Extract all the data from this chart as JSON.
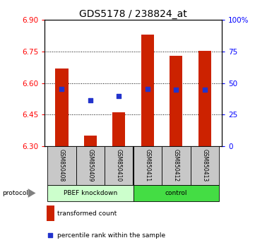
{
  "title": "GDS5178 / 238824_at",
  "samples": [
    "GSM850408",
    "GSM850409",
    "GSM850410",
    "GSM850411",
    "GSM850412",
    "GSM850413"
  ],
  "bar_bottom": 6.3,
  "bar_tops": [
    6.67,
    6.35,
    6.46,
    6.83,
    6.73,
    6.755
  ],
  "blue_y": [
    6.573,
    6.518,
    6.537,
    6.573,
    6.568,
    6.57
  ],
  "ylim": [
    6.3,
    6.9
  ],
  "yticks_left": [
    6.3,
    6.45,
    6.6,
    6.75,
    6.9
  ],
  "yticks_right_vals": [
    0,
    25,
    50,
    75,
    100
  ],
  "yticks_right_labels": [
    "0",
    "25",
    "50",
    "75",
    "100%"
  ],
  "bar_color": "#cc2200",
  "blue_color": "#2233cc",
  "group1_label": "PBEF knockdown",
  "group2_label": "control",
  "group1_color": "#ccffcc",
  "group2_color": "#44dd44",
  "sample_box_color": "#c8c8c8",
  "protocol_label": "protocol",
  "legend_label1": "transformed count",
  "legend_label2": "percentile rank within the sample",
  "title_fontsize": 10,
  "tick_fontsize": 7.5,
  "label_fontsize": 7,
  "legend_fontsize": 6.5,
  "bar_width": 0.45
}
